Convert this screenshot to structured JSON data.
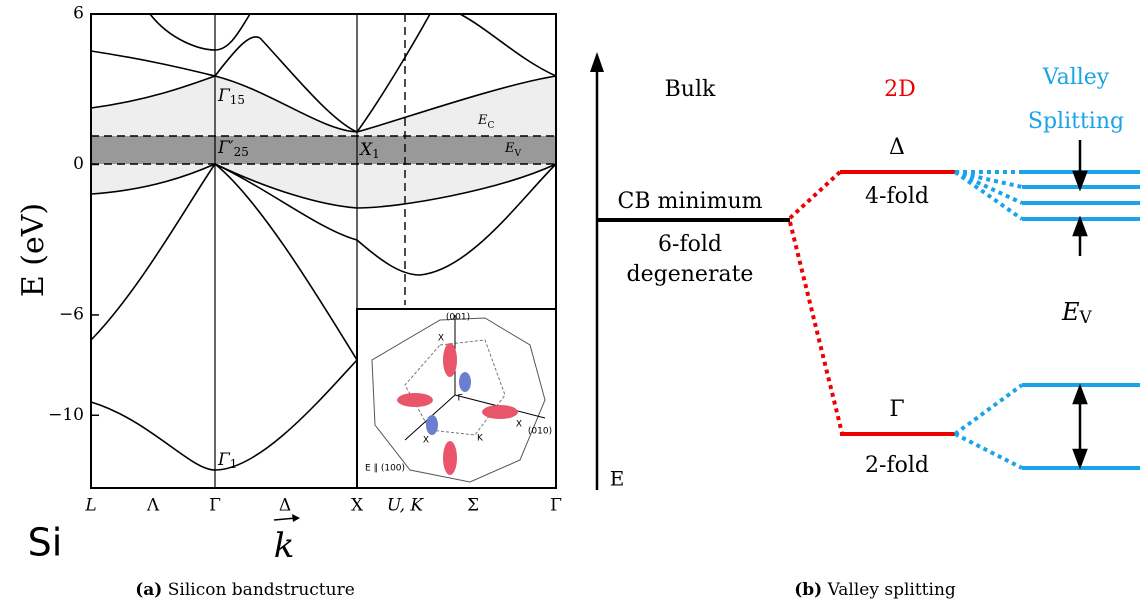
{
  "panel_a": {
    "ylim": [
      -12.9,
      6
    ],
    "yticks": [
      6,
      0,
      {
        "value": -6,
        "label": "−6"
      },
      {
        "value": -10,
        "label": "−10"
      }
    ],
    "y_axis_label": "E (eV)",
    "xticks": [
      "L",
      "Λ",
      "Γ",
      "Δ",
      "X",
      "U, K",
      "Σ",
      "Γ"
    ],
    "x_axis_label": "k",
    "material": "Si",
    "point_labels": [
      {
        "symbol": "Γ",
        "sub": "15"
      },
      {
        "symbol": "Γ′",
        "sub": "25"
      },
      {
        "symbol": "X",
        "sub": "1"
      },
      {
        "symbol": "E",
        "sub": "C"
      },
      {
        "symbol": "E",
        "sub": "V"
      },
      {
        "symbol": "Γ",
        "sub": "1"
      }
    ],
    "inset_labels": [
      "(001)",
      "X",
      "Γ",
      "X",
      "K",
      "X",
      "(010)",
      "E ∥ (100)"
    ],
    "caption_tag": "(a)",
    "caption": "Silicon bandstructure"
  },
  "panel_b": {
    "energy_axis": "E",
    "columns": [
      "Bulk",
      "2D",
      "Valley",
      "Splitting"
    ],
    "bulk_labels": [
      "CB minimum",
      "6-fold",
      "degenerate"
    ],
    "upper_level": {
      "symbol": "Δ",
      "degeneracy": "4-fold"
    },
    "lower_level": {
      "symbol": "Γ",
      "degeneracy": "2-fold"
    },
    "splitting_label": {
      "symbol": "E",
      "sub": "V"
    },
    "caption_tag": "(b)",
    "caption": "Valley splitting"
  }
}
